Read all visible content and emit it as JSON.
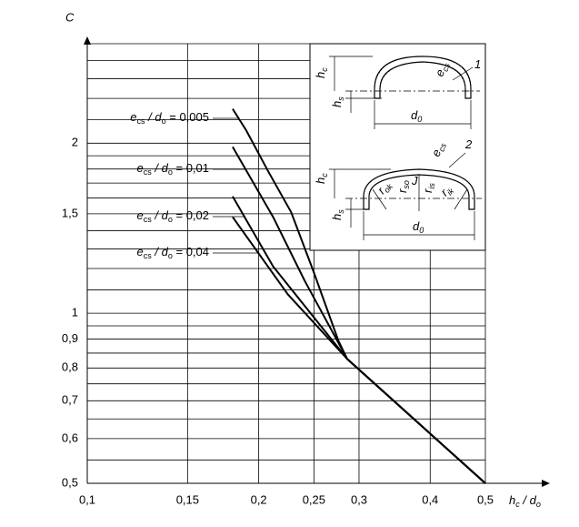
{
  "chart_data": {
    "type": "line",
    "log_x": true,
    "log_y": true,
    "color": "#000000",
    "y_label": "C",
    "x_label": [
      "h",
      "c",
      " / d",
      "o"
    ],
    "xlim": [
      0.1,
      0.5
    ],
    "xticks": [
      {
        "value": 0.1,
        "label": "0,1"
      },
      {
        "value": 0.15,
        "label": "0,15"
      },
      {
        "value": 0.2,
        "label": "0,2"
      },
      {
        "value": 0.25,
        "label": "0,25"
      },
      {
        "value": 0.3,
        "label": "0,3"
      },
      {
        "value": 0.4,
        "label": "0,4"
      },
      {
        "value": 0.5,
        "label": "0,5"
      }
    ],
    "ylim": [
      0.5,
      3.0
    ],
    "yticks": [
      {
        "value": 0.5,
        "label": "0,5"
      },
      {
        "value": 0.6,
        "label": "0,6"
      },
      {
        "value": 0.7,
        "label": "0,7"
      },
      {
        "value": 0.8,
        "label": "0,8"
      },
      {
        "value": 0.9,
        "label": "0,9"
      },
      1,
      {
        "value": 1.5,
        "label": "1,5"
      },
      2
    ],
    "yminor": [
      0.55,
      0.65,
      0.75,
      0.85,
      0.95,
      1.1,
      1.2,
      1.3,
      1.4,
      1.6,
      1.7,
      1.8,
      1.9,
      2.2,
      2.4,
      2.6,
      2.8
    ],
    "grid": true,
    "label_parts": [
      "e",
      "cs",
      " / d",
      "o",
      " = "
    ],
    "series": [
      {
        "name": "0,005",
        "x": [
          0.18,
          0.19,
          0.208,
          0.228,
          0.25,
          0.276,
          0.286,
          0.5
        ],
        "values": [
          2.3,
          2.11,
          1.78,
          1.51,
          1.18,
          0.894,
          0.83,
          0.5
        ]
      },
      {
        "name": "0,01",
        "x": [
          0.18,
          0.212,
          0.241,
          0.286,
          0.5
        ],
        "values": [
          1.97,
          1.48,
          1.14,
          0.83,
          0.5
        ]
      },
      {
        "name": "0,02",
        "x": [
          0.18,
          0.212,
          0.286,
          0.5
        ],
        "values": [
          1.61,
          1.21,
          0.83,
          0.5
        ]
      },
      {
        "name": "0,04",
        "x": [
          0.18,
          0.225,
          0.286,
          0.5
        ],
        "values": [
          1.48,
          1.08,
          0.83,
          0.5
        ]
      }
    ],
    "inset": {
      "labels": [
        {
          "text": "h",
          "sub": "c"
        },
        {
          "text": "e",
          "sub": "cs"
        },
        {
          "text": "1"
        },
        {
          "text": "h",
          "sub": "s"
        },
        {
          "text": "d",
          "sub": "0"
        },
        {
          "text": "2"
        },
        {
          "text": "h",
          "sub": "c"
        },
        {
          "text": "e",
          "sub": "cs"
        },
        {
          "text": "r",
          "sub": "ok"
        },
        {
          "text": "r",
          "sub": "so"
        },
        {
          "text": "J"
        },
        {
          "text": "r",
          "sub": "is"
        },
        {
          "text": "r",
          "sub": "ik"
        },
        {
          "text": "h",
          "sub": "s"
        },
        {
          "text": "d",
          "sub": "0"
        }
      ]
    }
  }
}
